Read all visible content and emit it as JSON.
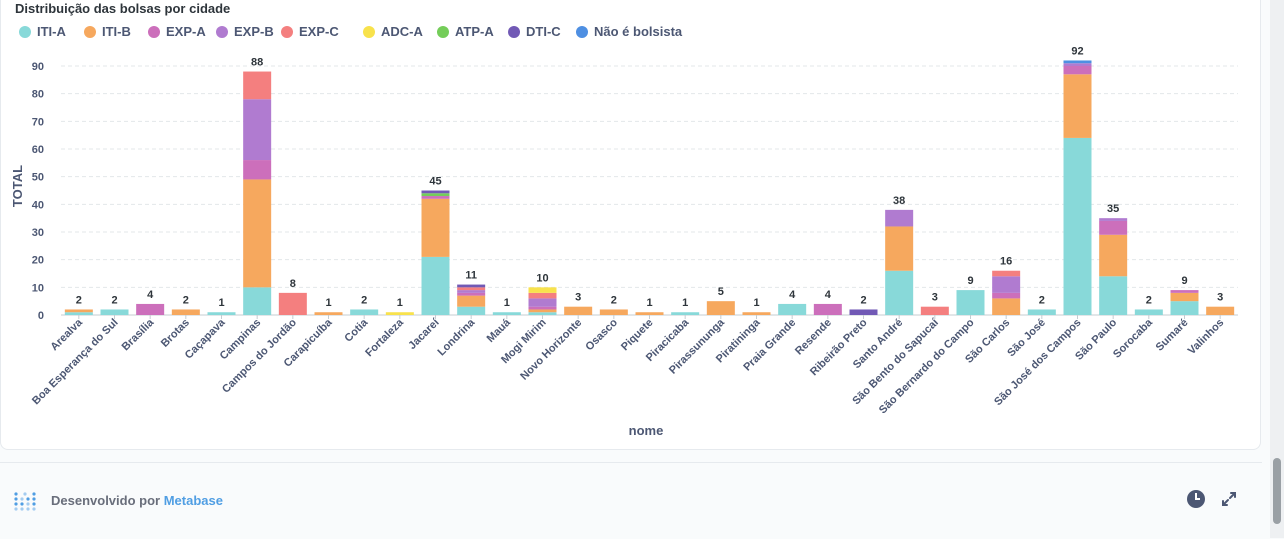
{
  "chart_data": {
    "type": "bar",
    "stacked": true,
    "title": "Distribuição das bolsas por cidade",
    "xlabel": "nome",
    "ylabel": "TOTAL",
    "ylim": [
      0,
      90
    ],
    "yticks": [
      0,
      10,
      20,
      30,
      40,
      50,
      60,
      70,
      80,
      90
    ],
    "grid": true,
    "legend_position": "top-left",
    "categories": [
      "Arealva",
      "Boa Esperança do Sul",
      "Brasília",
      "Brotas",
      "Caçapava",
      "Campinas",
      "Campos do Jordão",
      "Carapicuíba",
      "Cotia",
      "Fortaleza",
      "Jacareí",
      "Londrina",
      "Mauá",
      "Mogi Mirim",
      "Novo Horizonte",
      "Osasco",
      "Piquete",
      "Piracicaba",
      "Pirassununga",
      "Piratininga",
      "Praia Grande",
      "Resende",
      "Ribeirão Preto",
      "Santo André",
      "São Bento do Sapucaí",
      "São Bernardo do Campo",
      "São Carlos",
      "São José",
      "São José dos Campos",
      "São Paulo",
      "Sorocaba",
      "Sumaré",
      "Valinhos"
    ],
    "totals": [
      2,
      2,
      4,
      2,
      1,
      88,
      8,
      1,
      2,
      1,
      45,
      11,
      1,
      10,
      3,
      2,
      1,
      1,
      5,
      1,
      4,
      4,
      2,
      38,
      3,
      9,
      16,
      2,
      92,
      35,
      2,
      9,
      3
    ],
    "series": [
      {
        "name": "ITI-A",
        "color": "#88d9d9",
        "values": [
          1,
          2,
          0,
          0,
          1,
          10,
          0,
          0,
          2,
          0,
          21,
          3,
          1,
          1,
          0,
          0,
          0,
          1,
          0,
          0,
          4,
          0,
          0,
          16,
          0,
          9,
          0,
          2,
          64,
          14,
          2,
          5,
          0
        ]
      },
      {
        "name": "ITI-B",
        "color": "#f6a85e",
        "values": [
          1,
          0,
          0,
          2,
          0,
          39,
          0,
          1,
          0,
          0,
          21,
          4,
          0,
          1,
          3,
          2,
          1,
          0,
          5,
          1,
          0,
          0,
          0,
          16,
          0,
          0,
          6,
          0,
          23,
          15,
          0,
          3,
          3
        ]
      },
      {
        "name": "EXP-A",
        "color": "#cc6fbb",
        "values": [
          0,
          0,
          4,
          0,
          0,
          7,
          0,
          0,
          0,
          0,
          1,
          1,
          0,
          1,
          0,
          0,
          0,
          0,
          0,
          0,
          0,
          4,
          0,
          0,
          0,
          0,
          2,
          0,
          3,
          5,
          0,
          1,
          0
        ]
      },
      {
        "name": "EXP-B",
        "color": "#b07bd0",
        "values": [
          0,
          0,
          0,
          0,
          0,
          22,
          0,
          0,
          0,
          0,
          0,
          1,
          0,
          3,
          0,
          0,
          0,
          0,
          0,
          0,
          0,
          0,
          0,
          6,
          0,
          0,
          6,
          0,
          1,
          1,
          0,
          0,
          0
        ]
      },
      {
        "name": "EXP-C",
        "color": "#f47f7f",
        "values": [
          0,
          0,
          0,
          0,
          0,
          10,
          8,
          0,
          0,
          0,
          0,
          1,
          0,
          2,
          0,
          0,
          0,
          0,
          0,
          0,
          0,
          0,
          0,
          0,
          3,
          0,
          2,
          0,
          0,
          0,
          0,
          0,
          0
        ]
      },
      {
        "name": "ADC-A",
        "color": "#f8e24c",
        "values": [
          0,
          0,
          0,
          0,
          0,
          0,
          0,
          0,
          0,
          1,
          0,
          0,
          0,
          2,
          0,
          0,
          0,
          0,
          0,
          0,
          0,
          0,
          0,
          0,
          0,
          0,
          0,
          0,
          0,
          0,
          0,
          0,
          0
        ]
      },
      {
        "name": "ATP-A",
        "color": "#74cd59",
        "values": [
          0,
          0,
          0,
          0,
          0,
          0,
          0,
          0,
          0,
          0,
          1,
          0,
          0,
          0,
          0,
          0,
          0,
          0,
          0,
          0,
          0,
          0,
          0,
          0,
          0,
          0,
          0,
          0,
          0,
          0,
          0,
          0,
          0
        ]
      },
      {
        "name": "DTI-C",
        "color": "#7159b5",
        "values": [
          0,
          0,
          0,
          0,
          0,
          0,
          0,
          0,
          0,
          0,
          1,
          1,
          0,
          0,
          0,
          0,
          0,
          0,
          0,
          0,
          0,
          0,
          2,
          0,
          0,
          0,
          0,
          0,
          0,
          0,
          0,
          0,
          0
        ]
      },
      {
        "name": "Não é bolsista",
        "color": "#4e8fe2",
        "values": [
          0,
          0,
          0,
          0,
          0,
          0,
          0,
          0,
          0,
          0,
          0,
          0,
          0,
          0,
          0,
          0,
          0,
          0,
          0,
          0,
          0,
          0,
          0,
          0,
          0,
          0,
          0,
          0,
          1,
          0,
          0,
          0,
          0
        ]
      }
    ]
  },
  "footer": {
    "prefix": "Desenvolvido por",
    "brand": "Metabase"
  },
  "icons": {
    "logo": "metabase-logo-icon",
    "clock": "clock-icon",
    "expand": "expand-icon"
  }
}
